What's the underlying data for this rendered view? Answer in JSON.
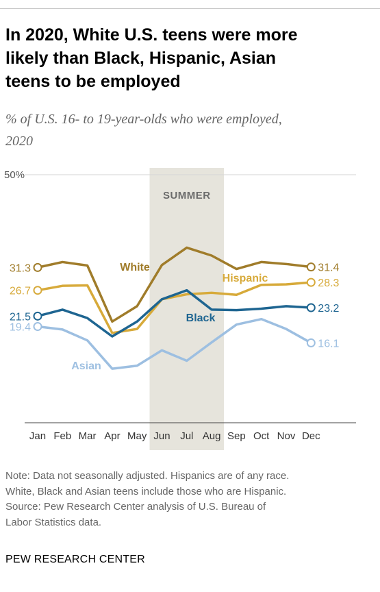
{
  "title_lines": [
    "In 2020, White U.S. teens were more",
    "likely than Black, Hispanic, Asian",
    "teens to be employed"
  ],
  "subtitle_lines": [
    "% of U.S. 16- to 19-year-olds who were employed,",
    "2020"
  ],
  "note_lines": [
    "Note: Data not seasonally adjusted. Hispanics are of any race.",
    "White, Black and Asian teens include those who are Hispanic.",
    "Source: Pew Research Center analysis of U.S. Bureau of",
    "Labor Statistics data."
  ],
  "brand": "PEW RESEARCH CENTER",
  "chart_data": {
    "type": "line",
    "x": [
      "Jan",
      "Feb",
      "Mar",
      "Apr",
      "May",
      "Jun",
      "Jul",
      "Aug",
      "Sep",
      "Oct",
      "Nov",
      "Dec"
    ],
    "ylim": [
      0,
      50
    ],
    "ytick_label": "50%",
    "shaded_region": {
      "label": "SUMMER",
      "from": "Jun",
      "to": "Aug",
      "color": "#e6e4dc",
      "label_color": "#6b6b6b"
    },
    "series": [
      {
        "name": "White",
        "color": "#a07c2a",
        "start_label": "31.3",
        "end_label": "31.4",
        "values": [
          31.3,
          32.4,
          31.7,
          20.4,
          23.5,
          31.8,
          35.3,
          33.7,
          31.0,
          32.4,
          32.0,
          31.4
        ]
      },
      {
        "name": "Hispanic",
        "color": "#d7aa3a",
        "start_label": "26.7",
        "end_label": "28.3",
        "values": [
          26.7,
          27.6,
          27.7,
          18.1,
          18.9,
          24.9,
          25.9,
          26.2,
          25.8,
          27.8,
          27.9,
          28.3
        ]
      },
      {
        "name": "Black",
        "color": "#1e6591",
        "start_label": "21.5",
        "end_label": "23.2",
        "values": [
          21.5,
          22.8,
          21.1,
          17.4,
          20.4,
          24.9,
          26.7,
          22.8,
          22.7,
          23.0,
          23.5,
          23.2
        ]
      },
      {
        "name": "Asian",
        "color": "#9dbfe1",
        "start_label": "19.4",
        "end_label": "16.1",
        "values": [
          19.4,
          18.8,
          16.6,
          10.9,
          11.5,
          14.6,
          12.5,
          16.2,
          19.8,
          20.9,
          18.9,
          16.1
        ]
      }
    ]
  }
}
